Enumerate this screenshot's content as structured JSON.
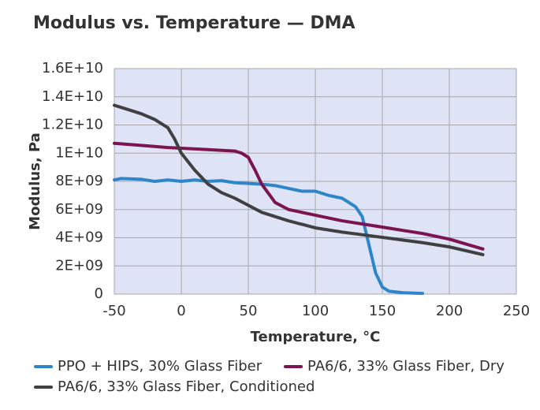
{
  "chart_data": {
    "type": "line",
    "title": "Modulus vs. Temperature — DMA",
    "x_label": "Temperature, °C",
    "y_label": "Modulus, Pa",
    "xlim": [
      -50,
      250
    ],
    "xticks": [
      -50,
      0,
      50,
      100,
      150,
      200,
      250
    ],
    "ylim": [
      0,
      16000000000
    ],
    "yticks": [
      0,
      {
        "value": 2000000000,
        "label": "2E+09"
      },
      {
        "value": 4000000000,
        "label": "4E+09"
      },
      {
        "value": 6000000000,
        "label": "6E+09"
      },
      {
        "value": 8000000000,
        "label": "8E+09"
      },
      {
        "value": 10000000000,
        "label": "1E+10"
      },
      {
        "value": 12000000000,
        "label": "1.2E+10"
      },
      {
        "value": 14000000000,
        "label": "1.4E+10"
      },
      {
        "value": 16000000000,
        "label": "1.6E+10"
      }
    ],
    "grid": true,
    "series": [
      {
        "name": "PPO + HIPS, 30% Glass Fiber",
        "color": "#2e86c9",
        "x": [
          -50,
          -45,
          -30,
          -20,
          -10,
          0,
          10,
          20,
          30,
          40,
          50,
          60,
          70,
          80,
          90,
          100,
          110,
          120,
          130,
          135,
          140,
          145,
          150,
          155,
          165,
          180
        ],
        "values": [
          8100000000,
          8200000000,
          8150000000,
          8000000000,
          8100000000,
          8000000000,
          8100000000,
          8000000000,
          8050000000,
          7900000000,
          7850000000,
          7800000000,
          7700000000,
          7500000000,
          7300000000,
          7300000000,
          7000000000,
          6800000000,
          6200000000,
          5500000000,
          3500000000,
          1500000000,
          500000000,
          200000000,
          100000000,
          50000000
        ]
      },
      {
        "name": "PA6/6, 33% Glass Fiber, Dry",
        "color": "#7b1451",
        "x": [
          -50,
          -30,
          -10,
          0,
          20,
          40,
          45,
          50,
          55,
          60,
          70,
          80,
          100,
          120,
          140,
          160,
          180,
          200,
          225
        ],
        "values": [
          10700000000,
          10550000000,
          10400000000,
          10350000000,
          10250000000,
          10150000000,
          10000000000,
          9700000000,
          8800000000,
          7800000000,
          6500000000,
          6000000000,
          5600000000,
          5200000000,
          4900000000,
          4600000000,
          4300000000,
          3900000000,
          3200000000
        ]
      },
      {
        "name": "PA6/6, 33% Glass Fiber, Conditioned",
        "color": "#404040",
        "x": [
          -50,
          -40,
          -30,
          -20,
          -10,
          -5,
          0,
          10,
          20,
          30,
          40,
          50,
          60,
          80,
          100,
          120,
          140,
          160,
          180,
          200,
          225
        ],
        "values": [
          13400000000,
          13100000000,
          12800000000,
          12400000000,
          11800000000,
          11000000000,
          10000000000,
          8800000000,
          7800000000,
          7200000000,
          6800000000,
          6300000000,
          5800000000,
          5200000000,
          4700000000,
          4400000000,
          4150000000,
          3900000000,
          3650000000,
          3350000000,
          2800000000
        ]
      }
    ]
  }
}
